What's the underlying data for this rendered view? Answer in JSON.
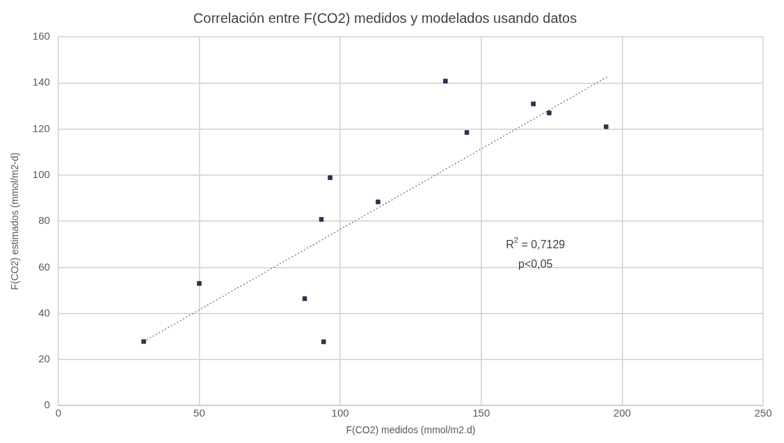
{
  "chart_data": {
    "type": "scatter",
    "title": "Correlación entre F(CO2) medidos y modelados usando datos",
    "xlabel": "F(CO2) medidos (mmol/m2.d)",
    "ylabel": "F(CO2) estimados (mmol/m2-d)",
    "series": [
      {
        "type": "scatter",
        "color": "#2e3350",
        "x": [
          30.3,
          50,
          87.4,
          93.3,
          94.1,
          96.4,
          113.4,
          137.3,
          144.9,
          168.5,
          174.1,
          194.3
        ],
        "values": [
          27.8,
          53,
          46.4,
          80.8,
          27.7,
          98.9,
          88.4,
          140.8,
          118.5,
          130.9,
          127,
          121
        ]
      },
      {
        "type": "line",
        "color": "#7f7f7f",
        "line_style": "dotted",
        "marker": "none",
        "x": [
          30.3,
          195
        ],
        "values": [
          27.8,
          142.8
        ]
      }
    ],
    "xlim": [
      0,
      250
    ],
    "xticks": [
      0,
      50,
      100,
      150,
      200,
      250
    ],
    "ylim": [
      0,
      160
    ],
    "yticks": [
      0,
      20,
      40,
      60,
      80,
      100,
      120,
      140,
      160
    ],
    "grid": true,
    "marker": "square",
    "legend": false,
    "annotations": [
      "R$^{2}$ = 0,7129",
      "p<0,05"
    ]
  }
}
